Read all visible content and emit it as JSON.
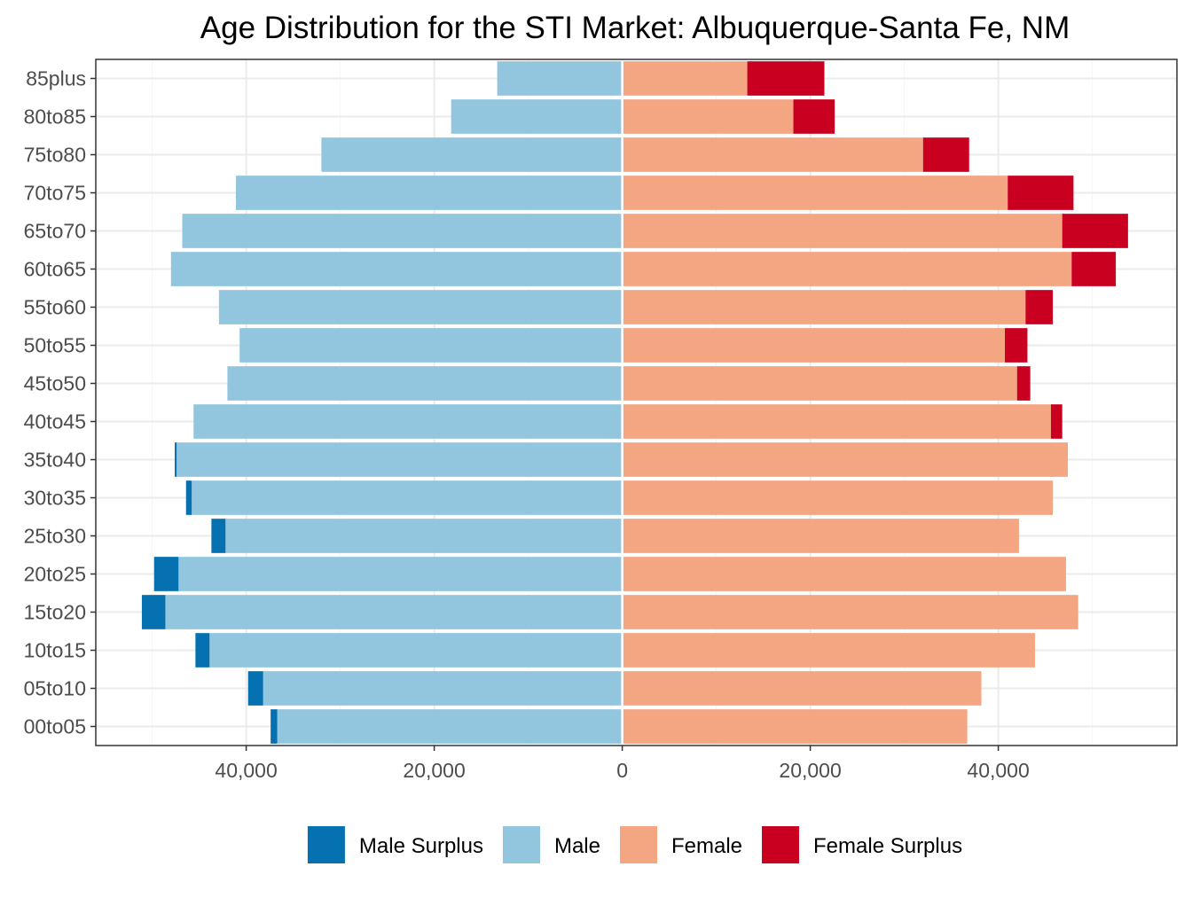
{
  "chart_data": {
    "type": "bar",
    "orientation": "horizontal",
    "title": "Age Distribution for the STI Market: Albuquerque-Santa Fe, NM",
    "xlabel": "",
    "ylabel": "",
    "categories": [
      "00to05",
      "05to10",
      "10to15",
      "15to20",
      "20to25",
      "25to30",
      "30to35",
      "35to40",
      "40to45",
      "45to50",
      "50to55",
      "55to60",
      "60to65",
      "65to70",
      "70to75",
      "75to80",
      "80to85",
      "85plus"
    ],
    "x_ticks": [
      -40000,
      -20000,
      0,
      20000,
      40000
    ],
    "x_tick_labels": [
      "40,000",
      "20,000",
      "0",
      "20,000",
      "40,000"
    ],
    "xlim": [
      -56000,
      59000
    ],
    "grid": true,
    "legend_position": "bottom",
    "series": [
      {
        "name": "Male Surplus",
        "key": "male_surplus",
        "color": "#0571b0",
        "values": [
          700,
          1600,
          1500,
          2500,
          2600,
          1500,
          600,
          200,
          0,
          0,
          0,
          0,
          0,
          0,
          0,
          0,
          0,
          0
        ]
      },
      {
        "name": "Male",
        "key": "male",
        "color": "#92c5de",
        "values": [
          36700,
          38200,
          43900,
          48600,
          47200,
          42200,
          45800,
          47400,
          45600,
          42000,
          40700,
          42900,
          48000,
          46800,
          41100,
          32000,
          18200,
          13300
        ]
      },
      {
        "name": "Female",
        "key": "female",
        "color": "#f4a582",
        "values": [
          36700,
          38200,
          43900,
          48500,
          47200,
          42200,
          45800,
          47400,
          45600,
          42000,
          40700,
          42900,
          47800,
          46800,
          41000,
          32000,
          18200,
          13300
        ]
      },
      {
        "name": "Female Surplus",
        "key": "female_surplus",
        "color": "#ca0020",
        "values": [
          0,
          0,
          0,
          0,
          0,
          0,
          0,
          0,
          1200,
          1400,
          2400,
          2900,
          4700,
          7000,
          7000,
          4900,
          4400,
          8200
        ]
      }
    ]
  },
  "colors": {
    "panel_border": "#333333",
    "grid_major": "#ebebeb",
    "grid_minor": "#f5f5f5",
    "bar_separator": "#ffffff"
  }
}
